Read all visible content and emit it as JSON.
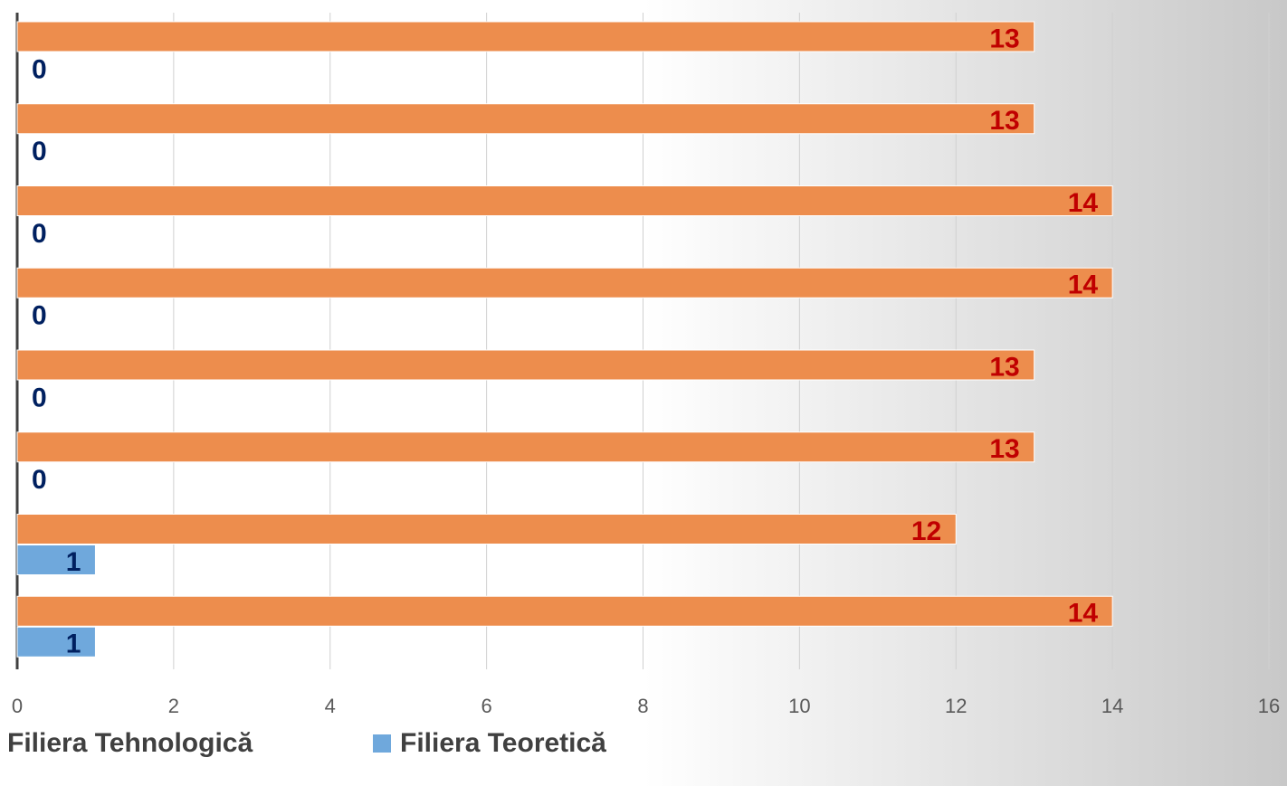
{
  "chart_data": {
    "type": "bar",
    "orientation": "horizontal",
    "categories": [
      null,
      null,
      null,
      null,
      null,
      null,
      null,
      null
    ],
    "series": [
      {
        "name": "Filiera Tehnologică",
        "color": "#ed8d4d",
        "label_color": "#c00000",
        "values": [
          13,
          13,
          14,
          14,
          13,
          13,
          12,
          14
        ]
      },
      {
        "name": "Filiera Teoretică",
        "color": "#6fa8dc",
        "label_color": "#002060",
        "values": [
          0,
          0,
          0,
          0,
          0,
          0,
          1,
          1
        ]
      }
    ],
    "xlim": [
      0,
      16
    ],
    "xticks": [
      0,
      2,
      4,
      6,
      8,
      10,
      12,
      14,
      16
    ],
    "grid": true,
    "legend": "bottom-left"
  }
}
